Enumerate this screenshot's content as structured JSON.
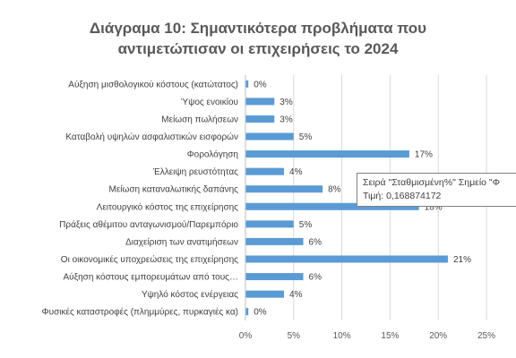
{
  "chart_data": {
    "type": "bar",
    "orientation": "horizontal",
    "title_line1": "Διάγραμα 10: Σημαντικότερα προβλήματα που",
    "title_line2": "αντιμετώπισαν οι επιχειρήσεις το 2024",
    "categories": [
      "Αύξηση μισθολογικού κόστους (κατώτατος)",
      "Ύψος ενοικίου",
      "Μείωση πωλήσεων",
      "Καταβολή υψηλών ασφαλιστικών εισφορών",
      "Φορολόγηση",
      "Έλλειψη ρευστότητας",
      "Μείωση καταναλωτικής δαπάνης",
      "Λειτουργικό κόστος της επιχείρησης",
      "Πράξεις αθέμιτου ανταγωνισμού/Παρεμπόριο",
      "Διαχείριση των ανατιμήσεων",
      "Οι οικονομικές υποχρεώσεις της επιχείρησης",
      "Αύξηση κόστους εμπορευμάτων από τους…",
      "Υψηλό κόστος ενέργειας",
      "Φυσικές καταστροφές (πλημμύρες, πυρκαγιές κα)"
    ],
    "values": [
      0.3,
      3,
      3,
      5,
      17,
      4,
      8,
      18,
      5,
      6,
      21,
      6,
      4,
      0.3
    ],
    "data_labels": [
      "0%",
      "3%",
      "3%",
      "5%",
      "17%",
      "4%",
      "8%",
      "18%",
      "5%",
      "6%",
      "21%",
      "6%",
      "4%",
      "0%"
    ],
    "xlim": [
      0,
      25
    ],
    "x_ticks": [
      "0%",
      "5%",
      "10%",
      "15%",
      "20%",
      "25%"
    ],
    "gridlines": true,
    "bar_color": "#5b9bd5"
  },
  "tooltip": {
    "line1": "Σειρά \"Σταθμισμένη%\" Σημείο \"Φ",
    "line2": "Τιμή: 0,168874172"
  }
}
